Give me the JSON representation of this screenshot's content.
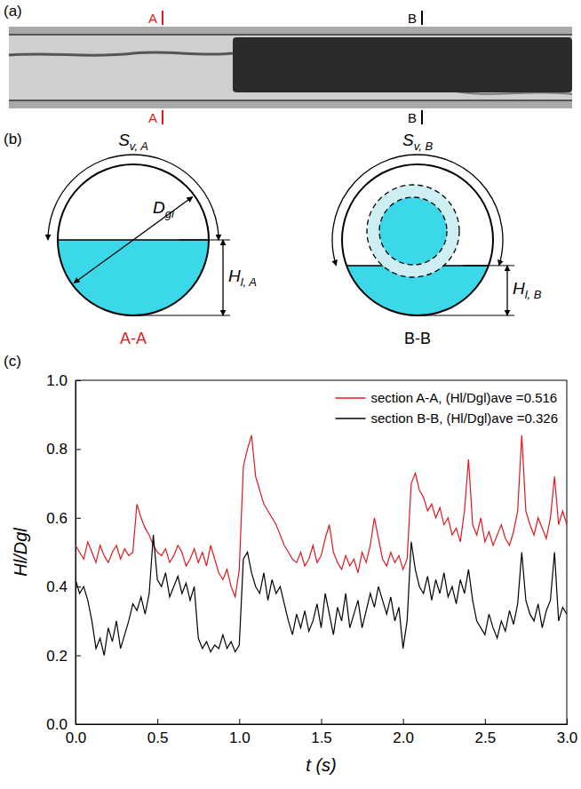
{
  "photo": {
    "label": "(a)",
    "section_marks": [
      {
        "text": "A",
        "color": "#e0191c"
      },
      {
        "text": "B",
        "color": "#000000"
      }
    ]
  },
  "diagram": {
    "label": "(b)",
    "sections": [
      {
        "name": "A-A",
        "color": "#e0191c",
        "arc_label": "Sv, A",
        "diameter_label": "Dgl",
        "height_label": "Hl, A"
      },
      {
        "name": "B-B",
        "color": "#000000",
        "arc_label": "Sv, B",
        "height_label": "Hl, B"
      }
    ]
  },
  "chart_data": {
    "type": "line",
    "annotations": [
      "(c)"
    ],
    "x_label": "t (s)",
    "y_label": "Hl/Dgl",
    "xlim": [
      0,
      3
    ],
    "xticks": [
      {
        "value": 0,
        "label": "0.0"
      },
      {
        "value": 0.5,
        "label": "0.5"
      },
      {
        "value": 1,
        "label": "1.0"
      },
      {
        "value": 1.5,
        "label": "1.5"
      },
      {
        "value": 2,
        "label": "2.0"
      },
      {
        "value": 2.5,
        "label": "2.5"
      },
      {
        "value": 3,
        "label": "3.0"
      }
    ],
    "ylim": [
      0,
      1
    ],
    "yticks": [
      {
        "value": 0,
        "label": "0.0"
      },
      {
        "value": 0.2,
        "label": "0.2"
      },
      {
        "value": 0.4,
        "label": "0.4"
      },
      {
        "value": 0.6,
        "label": "0.6"
      },
      {
        "value": 0.8,
        "label": "0.8"
      },
      {
        "value": 1,
        "label": "1.0"
      }
    ],
    "grid": false,
    "legend": "top-right",
    "x": [
      0,
      0.025,
      0.05,
      0.075,
      0.1,
      0.125,
      0.15,
      0.175,
      0.2,
      0.225,
      0.25,
      0.275,
      0.3,
      0.325,
      0.35,
      0.375,
      0.4,
      0.425,
      0.45,
      0.475,
      0.5,
      0.525,
      0.55,
      0.575,
      0.6,
      0.625,
      0.65,
      0.675,
      0.7,
      0.725,
      0.75,
      0.775,
      0.8,
      0.825,
      0.85,
      0.875,
      0.9,
      0.925,
      0.95,
      0.975,
      1,
      1.025,
      1.05,
      1.075,
      1.1,
      1.125,
      1.15,
      1.175,
      1.2,
      1.225,
      1.25,
      1.275,
      1.3,
      1.325,
      1.35,
      1.375,
      1.4,
      1.425,
      1.45,
      1.475,
      1.5,
      1.525,
      1.55,
      1.575,
      1.6,
      1.625,
      1.65,
      1.675,
      1.7,
      1.725,
      1.75,
      1.775,
      1.8,
      1.825,
      1.85,
      1.875,
      1.9,
      1.925,
      1.95,
      1.975,
      2,
      2.025,
      2.05,
      2.075,
      2.1,
      2.125,
      2.15,
      2.175,
      2.2,
      2.225,
      2.25,
      2.275,
      2.3,
      2.325,
      2.35,
      2.375,
      2.4,
      2.425,
      2.45,
      2.475,
      2.5,
      2.525,
      2.55,
      2.575,
      2.6,
      2.625,
      2.65,
      2.675,
      2.7,
      2.725,
      2.75,
      2.775,
      2.8,
      2.825,
      2.85,
      2.875,
      2.9,
      2.925,
      2.95,
      2.975,
      3
    ],
    "series": [
      {
        "name": "section A-A, (Hl/Dgl)ave =0.516",
        "color": "#e0191c",
        "values": [
          0.52,
          0.5,
          0.48,
          0.53,
          0.5,
          0.47,
          0.52,
          0.49,
          0.47,
          0.5,
          0.52,
          0.48,
          0.51,
          0.49,
          0.5,
          0.64,
          0.6,
          0.57,
          0.55,
          0.52,
          0.5,
          0.49,
          0.51,
          0.47,
          0.49,
          0.52,
          0.5,
          0.46,
          0.48,
          0.51,
          0.47,
          0.5,
          0.46,
          0.52,
          0.48,
          0.44,
          0.42,
          0.45,
          0.4,
          0.37,
          0.45,
          0.75,
          0.8,
          0.84,
          0.72,
          0.68,
          0.64,
          0.62,
          0.6,
          0.58,
          0.55,
          0.52,
          0.5,
          0.48,
          0.47,
          0.5,
          0.46,
          0.48,
          0.52,
          0.47,
          0.49,
          0.54,
          0.58,
          0.5,
          0.47,
          0.45,
          0.49,
          0.46,
          0.48,
          0.44,
          0.5,
          0.47,
          0.52,
          0.6,
          0.54,
          0.48,
          0.46,
          0.5,
          0.47,
          0.49,
          0.45,
          0.48,
          0.7,
          0.73,
          0.68,
          0.66,
          0.62,
          0.64,
          0.6,
          0.63,
          0.58,
          0.6,
          0.55,
          0.57,
          0.53,
          0.62,
          0.77,
          0.58,
          0.55,
          0.6,
          0.53,
          0.56,
          0.52,
          0.55,
          0.58,
          0.54,
          0.52,
          0.56,
          0.62,
          0.84,
          0.62,
          0.58,
          0.55,
          0.6,
          0.57,
          0.54,
          0.6,
          0.72,
          0.58,
          0.62,
          0.58
        ]
      },
      {
        "name": "section B-B, (Hl/Dgl)ave =0.326",
        "color": "#000000",
        "values": [
          0.42,
          0.38,
          0.4,
          0.36,
          0.3,
          0.22,
          0.25,
          0.2,
          0.28,
          0.24,
          0.3,
          0.22,
          0.26,
          0.3,
          0.35,
          0.33,
          0.37,
          0.32,
          0.38,
          0.55,
          0.42,
          0.4,
          0.44,
          0.37,
          0.4,
          0.43,
          0.38,
          0.41,
          0.36,
          0.4,
          0.25,
          0.22,
          0.24,
          0.21,
          0.23,
          0.22,
          0.26,
          0.22,
          0.24,
          0.21,
          0.23,
          0.48,
          0.5,
          0.44,
          0.4,
          0.38,
          0.44,
          0.36,
          0.42,
          0.38,
          0.4,
          0.35,
          0.3,
          0.26,
          0.32,
          0.28,
          0.33,
          0.27,
          0.3,
          0.35,
          0.28,
          0.38,
          0.32,
          0.26,
          0.34,
          0.3,
          0.38,
          0.28,
          0.32,
          0.36,
          0.28,
          0.33,
          0.38,
          0.34,
          0.4,
          0.36,
          0.32,
          0.37,
          0.3,
          0.34,
          0.22,
          0.3,
          0.53,
          0.45,
          0.4,
          0.38,
          0.43,
          0.36,
          0.42,
          0.38,
          0.44,
          0.37,
          0.4,
          0.35,
          0.42,
          0.38,
          0.45,
          0.36,
          0.3,
          0.28,
          0.26,
          0.32,
          0.28,
          0.25,
          0.3,
          0.27,
          0.33,
          0.29,
          0.35,
          0.5,
          0.36,
          0.32,
          0.3,
          0.35,
          0.28,
          0.33,
          0.36,
          0.5,
          0.3,
          0.34,
          0.32
        ]
      }
    ]
  }
}
